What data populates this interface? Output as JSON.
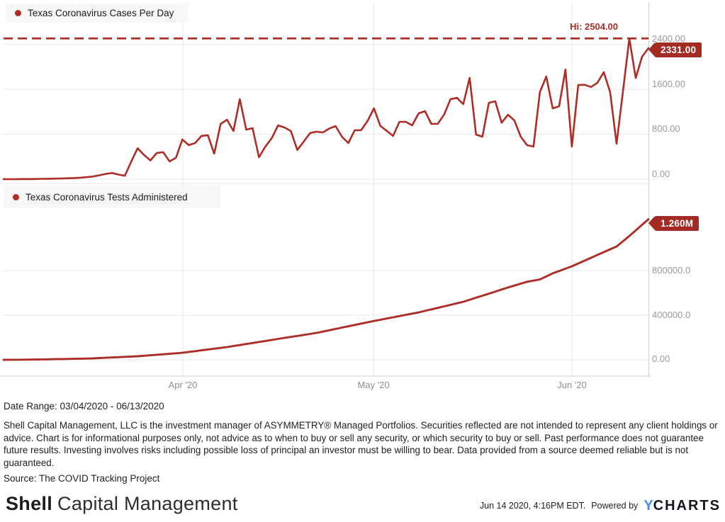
{
  "colors": {
    "accent": "#ae2d26",
    "badge": "#a32b24",
    "gridline": "#e8e8e8",
    "axis_border": "#d0d0d0",
    "tick_text": "#9b9b9b",
    "ycharts_blue": "#4a90e2"
  },
  "chart_data": [
    {
      "type": "line",
      "title": "Texas Coronavirus Cases Per Day",
      "x_start_date": "03/04/2020",
      "x_end_date": "06/13/2020",
      "x_tick_labels": [
        "Apr '20",
        "May '20",
        "Jun '20"
      ],
      "y_axis": {
        "tick_labels": [
          "2400.00",
          "1600.00",
          "800.00",
          "0.00"
        ]
      },
      "y_gridlines": [
        0,
        800,
        1600,
        2400
      ],
      "ylim": [
        0,
        3100
      ],
      "grid": true,
      "legend_position": "top-left",
      "high": {
        "label": "Hi: 2504.00",
        "value": 2504
      },
      "last": {
        "label": "2331.00",
        "value": 2331
      },
      "values": [
        1,
        0,
        1,
        2,
        3,
        4,
        6,
        8,
        10,
        13,
        16,
        20,
        27,
        36,
        48,
        69,
        94,
        110,
        82,
        62,
        315,
        550,
        432,
        334,
        466,
        480,
        316,
        382,
        705,
        606,
        643,
        770,
        782,
        455,
        983,
        1058,
        857,
        1424,
        882,
        907,
        390,
        580,
        730,
        958,
        920,
        857,
        520,
        668,
        820,
        845,
        832,
        900,
        945,
        756,
        643,
        870,
        872,
        1035,
        1260,
        950,
        860,
        770,
        1020,
        1021,
        958,
        1170,
        1210,
        983,
        985,
        1150,
        1424,
        1448,
        1335,
        1801,
        794,
        756,
        1360,
        1386,
        1005,
        1147,
        1046,
        756,
        605,
        580,
        1550,
        1827,
        1260,
        1298,
        1949,
        580,
        1676,
        1680,
        1640,
        1714,
        1903,
        1550,
        630,
        1560,
        2504,
        1800,
        2180,
        2331
      ]
    },
    {
      "type": "line",
      "title": "Texas Coronavirus Tests Administered",
      "x_start_date": "03/04/2020",
      "x_end_date": "06/13/2020",
      "y_axis": {
        "tick_labels": [
          "800000.0",
          "400000.0",
          "0.00"
        ]
      },
      "y_gridlines": [
        0,
        400000,
        800000
      ],
      "ylim": [
        0,
        1590000
      ],
      "grid": true,
      "legend_position": "top-left",
      "last": {
        "label": "1.260M",
        "value": 1260000
      },
      "values": [
        200,
        500,
        900,
        1400,
        2000,
        2700,
        3500,
        4400,
        5400,
        6500,
        7700,
        9000,
        10300,
        11600,
        13000,
        15700,
        18400,
        21100,
        23800,
        26500,
        29200,
        32000,
        36400,
        40800,
        45200,
        49700,
        54100,
        58500,
        63000,
        70300,
        77600,
        84900,
        92100,
        99400,
        106700,
        114000,
        123100,
        132300,
        141400,
        150600,
        159700,
        168900,
        178000,
        187000,
        196000,
        205000,
        214000,
        223000,
        232000,
        241000,
        252900,
        264800,
        276700,
        288600,
        300400,
        312300,
        324200,
        336100,
        348000,
        359000,
        370000,
        381000,
        392000,
        403000,
        414000,
        425000,
        438600,
        452100,
        465700,
        479300,
        492900,
        506400,
        520000,
        538300,
        556600,
        574900,
        593100,
        611400,
        629700,
        648000,
        665300,
        682700,
        700000,
        710000,
        720000,
        747500,
        775000,
        796000,
        817000,
        838000,
        863500,
        889000,
        914500,
        940000,
        965300,
        990700,
        1016000,
        1063000,
        1110000,
        1160000,
        1210000,
        1260000
      ]
    }
  ],
  "footer": {
    "date_range": "Date Range: 03/04/2020 - 06/13/2020",
    "disclaimer": "Shell Capital Management, LLC is the investment manager of ASYMMETRY® Managed Portfolios. Securities reflected are not intended to represent any client holdings or advice. Chart is for informational purposes only, not advice as to when to buy or sell any security, or which security to buy or sell. Past performance does not guarantee future results. Investing involves risks including possible loss of principal an investor must be willing to bear. Data provided from a source deemed reliable but is not guaranteed.",
    "source": "Source: The COVID Tracking Project"
  },
  "branding": {
    "logo_bold": "Shell",
    "logo_rest": "Capital Management",
    "timestamp": "Jun 14 2020, 4:16PM EDT.",
    "powered_by": "Powered by",
    "ycharts_y": "Y",
    "ycharts_rest": "CHARTS"
  }
}
